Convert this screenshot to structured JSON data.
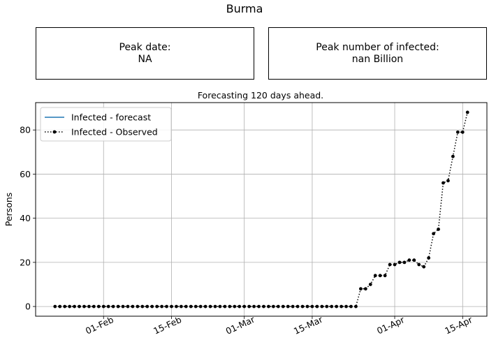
{
  "title": "Burma",
  "boxes": {
    "peak_date_label": "Peak date:",
    "peak_date_value": "NA",
    "peak_infected_label": "Peak number of infected:",
    "peak_infected_value": "nan Billion"
  },
  "chart_data": {
    "type": "line",
    "title": "Forecasting 120 days ahead.",
    "xlabel": "",
    "ylabel": "Persons",
    "xlim": [
      "2020-01-18",
      "2020-04-20"
    ],
    "ylim": [
      -4.4,
      92.4
    ],
    "x_ticks": [
      {
        "date": "2020-02-01",
        "label": "01-Feb"
      },
      {
        "date": "2020-02-15",
        "label": "15-Feb"
      },
      {
        "date": "2020-03-01",
        "label": "01-Mar"
      },
      {
        "date": "2020-03-15",
        "label": "15-Mar"
      },
      {
        "date": "2020-04-01",
        "label": "01-Apr"
      },
      {
        "date": "2020-04-15",
        "label": "15-Apr"
      }
    ],
    "y_ticks": [
      0,
      20,
      40,
      60,
      80
    ],
    "grid": true,
    "legend": "top-left",
    "series": [
      {
        "name": "Infected - forecast",
        "color": "#1f77b4",
        "style": "solid",
        "x": [],
        "values": []
      },
      {
        "name": "Infected - Observed",
        "color": "#000000",
        "style": "dotted",
        "marker": "circle",
        "start_date": "2020-01-22",
        "values": [
          0,
          0,
          0,
          0,
          0,
          0,
          0,
          0,
          0,
          0,
          0,
          0,
          0,
          0,
          0,
          0,
          0,
          0,
          0,
          0,
          0,
          0,
          0,
          0,
          0,
          0,
          0,
          0,
          0,
          0,
          0,
          0,
          0,
          0,
          0,
          0,
          0,
          0,
          0,
          0,
          0,
          0,
          0,
          0,
          0,
          0,
          0,
          0,
          0,
          0,
          0,
          0,
          0,
          0,
          0,
          0,
          0,
          0,
          0,
          0,
          0,
          0,
          0,
          8,
          8,
          10,
          14,
          14,
          14,
          19,
          19,
          20,
          20,
          21,
          21,
          19,
          18,
          22,
          33,
          35,
          56,
          57,
          68,
          79,
          79,
          88
        ]
      }
    ]
  }
}
